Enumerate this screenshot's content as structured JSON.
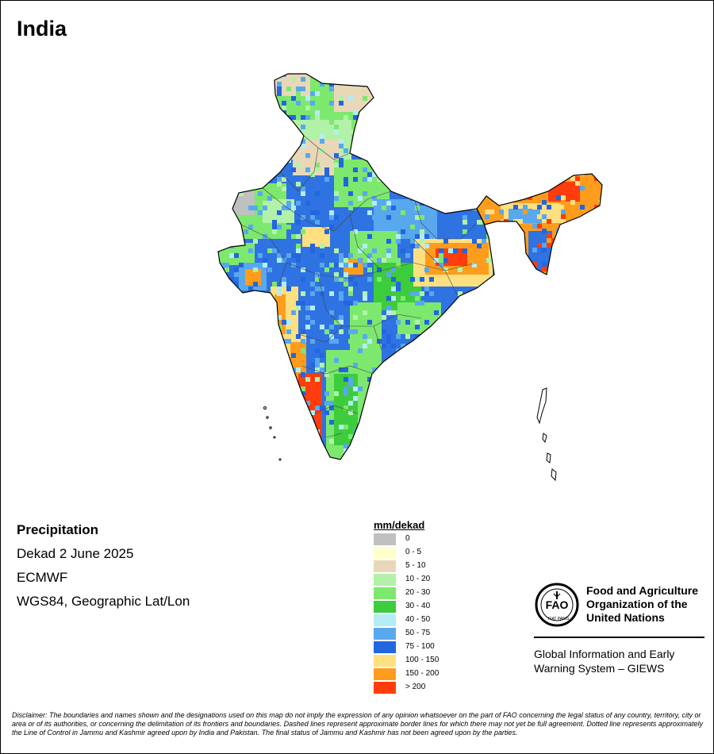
{
  "country": "India",
  "info": {
    "variable": "Precipitation",
    "period": "Dekad 2 June 2025",
    "source": "ECMWF",
    "projection": "WGS84, Geographic Lat/Lon"
  },
  "legend": {
    "title": "mm/dekad",
    "items": [
      {
        "label": "0",
        "color": "#c0c0c0"
      },
      {
        "label": "0 - 5",
        "color": "#ffffcc"
      },
      {
        "label": "5 - 10",
        "color": "#e8d8b8"
      },
      {
        "label": "10 - 20",
        "color": "#b2f2a8"
      },
      {
        "label": "20 - 30",
        "color": "#7de86e"
      },
      {
        "label": "30 - 40",
        "color": "#3ccc3c"
      },
      {
        "label": "40 - 50",
        "color": "#b4ecf6"
      },
      {
        "label": "50 - 75",
        "color": "#58a8ee"
      },
      {
        "label": "75 - 100",
        "color": "#2266e0"
      },
      {
        "label": "100 - 150",
        "color": "#ffe080"
      },
      {
        "label": "150 - 200",
        "color": "#ff9c1c"
      },
      {
        "label": "> 200",
        "color": "#ff3c0c"
      }
    ]
  },
  "logo": {
    "org_name": "Food and Agriculture Organization of the United Nations",
    "emblem_text": "FIAT PANIS",
    "system_name": "Global Information and Early Warning System – GIEWS"
  },
  "disclaimer": "Disclaimer: The boundaries and names shown and the designations used on this map do not imply the expression of any opinion whatsoever on the part of FAO concerning the legal status of any country, territory, city or area or of its authorities, or concerning the delimitation of its frontiers and boundaries. Dashed lines represent approximate border lines for which there may not yet be full agreement. Dotted line represents approximately the Line of Control in Jammu and Kashmir agreed upon by India and Pakistan. The final status of Jammu and Kashmir has not been agreed upon by the parties."
}
